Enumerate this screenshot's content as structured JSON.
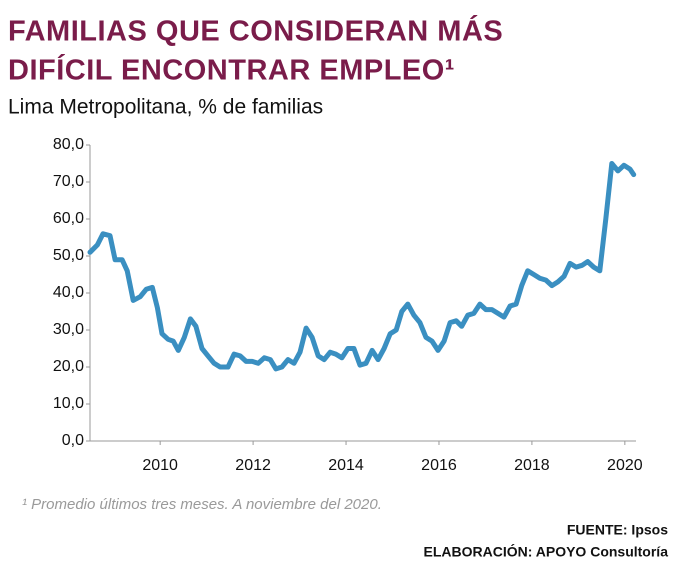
{
  "chart_data": {
    "type": "line",
    "title": [
      "FAMILIAS QUE CONSIDERAN MÁS",
      "DIFÍCIL ENCONTRAR EMPLEO¹"
    ],
    "subtitle": "Lima Metropolitana, % de familias",
    "footnote": "¹ Promedio últimos tres meses. A noviembre del 2020.",
    "source": [
      "FUENTE: Ipsos",
      "ELABORACIÓN: APOYO Consultoría"
    ],
    "x": [
      2008.49,
      2008.65,
      2008.77,
      2008.92,
      2009.03,
      2009.18,
      2009.29,
      2009.42,
      2009.57,
      2009.7,
      2009.83,
      2009.94,
      2010.04,
      2010.17,
      2010.28,
      2010.39,
      2010.52,
      2010.65,
      2010.77,
      2010.9,
      2011.03,
      2011.16,
      2011.29,
      2011.46,
      2011.59,
      2011.72,
      2011.85,
      2011.98,
      2012.11,
      2012.24,
      2012.37,
      2012.49,
      2012.62,
      2012.75,
      2012.88,
      2013.01,
      2013.14,
      2013.27,
      2013.4,
      2013.53,
      2013.66,
      2013.78,
      2013.91,
      2014.04,
      2014.17,
      2014.3,
      2014.43,
      2014.56,
      2014.69,
      2014.82,
      2014.95,
      2015.08,
      2015.2,
      2015.33,
      2015.46,
      2015.59,
      2015.72,
      2015.85,
      2015.98,
      2016.11,
      2016.24,
      2016.37,
      2016.49,
      2016.62,
      2016.75,
      2016.88,
      2017.01,
      2017.14,
      2017.27,
      2017.4,
      2017.53,
      2017.66,
      2017.78,
      2017.91,
      2018.04,
      2018.17,
      2018.3,
      2018.43,
      2018.56,
      2018.69,
      2018.82,
      2018.95,
      2019.08,
      2019.2,
      2019.33,
      2019.46,
      2019.59,
      2019.72,
      2019.85,
      2019.98,
      2020.11,
      2020.19
    ],
    "series": [
      {
        "color": "#3a8fc1",
        "values": [
          51,
          53,
          56,
          55.5,
          49,
          49,
          46,
          38,
          39,
          41,
          41.5,
          36,
          29,
          27.5,
          27,
          24.5,
          28,
          33,
          31,
          25,
          23,
          21,
          20,
          20,
          23.5,
          23,
          21.5,
          21.5,
          21,
          22.5,
          22,
          19.5,
          20,
          22,
          21,
          24,
          30.5,
          28,
          23,
          22,
          24,
          23.5,
          22.5,
          25,
          25,
          20.5,
          21,
          24.5,
          22,
          25,
          29,
          30,
          35,
          37,
          34,
          32,
          28,
          27,
          24.5,
          27,
          32,
          32.5,
          31,
          34,
          34.5,
          37,
          35.5,
          35.5,
          34.5,
          33.5,
          36.5,
          37,
          42,
          46,
          45,
          44,
          43.5,
          42,
          43,
          44.5,
          48,
          47,
          47.5,
          48.5,
          47,
          46,
          60,
          75,
          73,
          74.5,
          73.5,
          72
        ]
      }
    ],
    "xlim": [
      2008.49,
      2020.24
    ],
    "xticks": [
      2010,
      2012,
      2014,
      2016,
      2018,
      2020
    ],
    "ylim": [
      0,
      80
    ],
    "yticks": [
      {
        "value": 0,
        "label": "0,0"
      },
      {
        "value": 10,
        "label": "10,0"
      },
      {
        "value": 20,
        "label": "20,0"
      },
      {
        "value": 30,
        "label": "30,0"
      },
      {
        "value": 40,
        "label": "40,0"
      },
      {
        "value": 50,
        "label": "50,0"
      },
      {
        "value": 60,
        "label": "60,0"
      },
      {
        "value": 70,
        "label": "70,0"
      },
      {
        "value": 80,
        "label": "80,0"
      }
    ]
  }
}
